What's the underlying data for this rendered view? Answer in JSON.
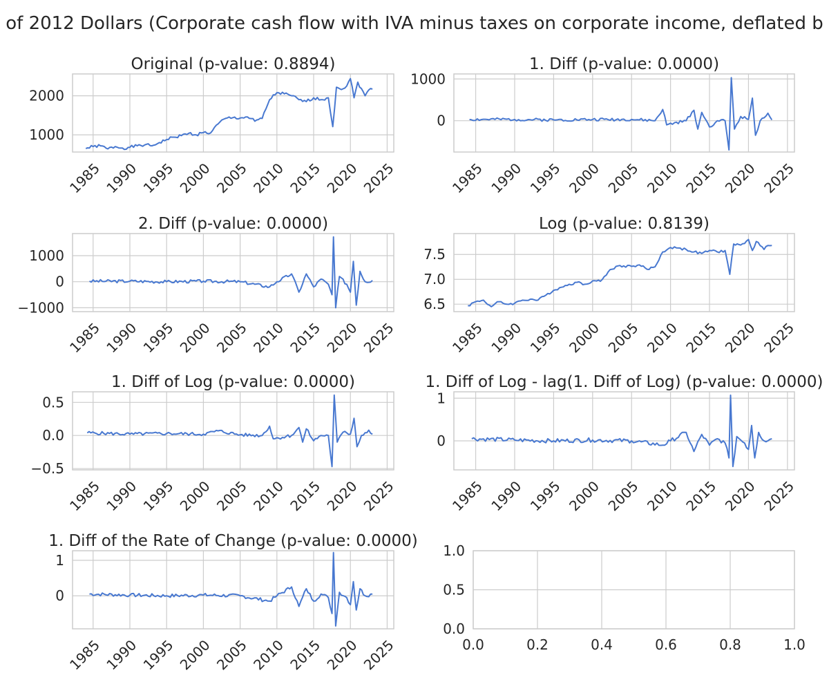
{
  "figure": {
    "suptitle": "of 2012 Dollars (Corporate cash flow with IVA minus taxes on corporate income, deflated b"
  },
  "colors": {
    "line": "#4878d0",
    "grid": "#cccccc",
    "text": "#262626"
  },
  "chart_data": [
    {
      "type": "line",
      "title": "Original (p-value: 0.8894)",
      "xlim": [
        1982.2,
        2025.9
      ],
      "ylim": [
        560,
        2560
      ],
      "xticks": [
        1985,
        1990,
        1995,
        2000,
        2005,
        2010,
        2015,
        2020,
        2025
      ],
      "xtick_labels": [
        "1985",
        "1990",
        "1995",
        "2000",
        "2005",
        "2010",
        "2015",
        "2020",
        "2025"
      ],
      "yticks": [
        1000,
        2000
      ],
      "ytick_labels": [
        "1000",
        "2000"
      ],
      "anchors": [
        [
          1984.0,
          650
        ],
        [
          1985.0,
          700
        ],
        [
          1986.0,
          720
        ],
        [
          1987.0,
          640
        ],
        [
          1988.0,
          700
        ],
        [
          1989.0,
          660
        ],
        [
          1990.0,
          680
        ],
        [
          1991.0,
          720
        ],
        [
          1992.0,
          740
        ],
        [
          1993.0,
          720
        ],
        [
          1994.0,
          800
        ],
        [
          1995.0,
          880
        ],
        [
          1996.0,
          940
        ],
        [
          1997.0,
          980
        ],
        [
          1998.0,
          1040
        ],
        [
          1999.0,
          1000
        ],
        [
          2000.0,
          1060
        ],
        [
          2001.0,
          1050
        ],
        [
          2002.0,
          1280
        ],
        [
          2003.0,
          1420
        ],
        [
          2004.0,
          1440
        ],
        [
          2005.0,
          1430
        ],
        [
          2006.0,
          1460
        ],
        [
          2007.0,
          1350
        ],
        [
          2008.0,
          1420
        ],
        [
          2009.0,
          1900
        ],
        [
          2010.0,
          2080
        ],
        [
          2011.0,
          2050
        ],
        [
          2012.0,
          2000
        ],
        [
          2013.0,
          1900
        ],
        [
          2014.0,
          1850
        ],
        [
          2015.0,
          1950
        ],
        [
          2016.0,
          1900
        ],
        [
          2017.0,
          1950
        ],
        [
          2017.6,
          1210
        ],
        [
          2018.1,
          2220
        ],
        [
          2019.0,
          2180
        ],
        [
          2019.5,
          2250
        ],
        [
          2020.0,
          2440
        ],
        [
          2020.5,
          1950
        ],
        [
          2021.0,
          2350
        ],
        [
          2022.0,
          2000
        ],
        [
          2022.5,
          2150
        ],
        [
          2023.0,
          2170
        ]
      ],
      "noise": 40,
      "seed": 1
    },
    {
      "type": "line",
      "title": "1. Diff (p-value: 0.0000)",
      "xlim": [
        1982.2,
        2025.9
      ],
      "ylim": [
        -750,
        1120
      ],
      "xticks": [
        1985,
        1990,
        1995,
        2000,
        2005,
        2010,
        2015,
        2020,
        2025
      ],
      "xtick_labels": [
        "1985",
        "1990",
        "1995",
        "2000",
        "2005",
        "2010",
        "2015",
        "2020",
        "2025"
      ],
      "yticks": [
        0,
        1000
      ],
      "ytick_labels": [
        "0",
        "1000"
      ],
      "anchors": [
        [
          1984.2,
          30
        ],
        [
          1990.0,
          30
        ],
        [
          1995.0,
          20
        ],
        [
          2000.0,
          30
        ],
        [
          2005.0,
          30
        ],
        [
          2008.0,
          0
        ],
        [
          2009.0,
          270
        ],
        [
          2009.5,
          -100
        ],
        [
          2012.0,
          0
        ],
        [
          2013.0,
          250
        ],
        [
          2013.5,
          -200
        ],
        [
          2014.0,
          200
        ],
        [
          2015.0,
          -150
        ],
        [
          2016.0,
          0
        ],
        [
          2017.0,
          0
        ],
        [
          2017.5,
          -700
        ],
        [
          2017.8,
          1030
        ],
        [
          2018.2,
          -200
        ],
        [
          2019.0,
          100
        ],
        [
          2020.0,
          30
        ],
        [
          2020.5,
          540
        ],
        [
          2020.9,
          -350
        ],
        [
          2021.5,
          0
        ],
        [
          2022.5,
          180
        ],
        [
          2023.0,
          20
        ]
      ],
      "noise": 35,
      "seed": 2
    },
    {
      "type": "line",
      "title": "2. Diff (p-value: 0.0000)",
      "xlim": [
        1982.2,
        2025.9
      ],
      "ylim": [
        -1150,
        1850
      ],
      "xticks": [
        1985,
        1990,
        1995,
        2000,
        2005,
        2010,
        2015,
        2020,
        2025
      ],
      "xtick_labels": [
        "1985",
        "1990",
        "1995",
        "2000",
        "2005",
        "2010",
        "2015",
        "2020",
        "2025"
      ],
      "yticks": [
        -1000,
        0,
        1000
      ],
      "ytick_labels": [
        "−1000",
        "0",
        "1000"
      ],
      "anchors": [
        [
          1984.5,
          20
        ],
        [
          1990.0,
          20
        ],
        [
          1995.0,
          0
        ],
        [
          2000.0,
          20
        ],
        [
          2005.0,
          0
        ],
        [
          2009.0,
          -200
        ],
        [
          2010.0,
          0
        ],
        [
          2012.0,
          300
        ],
        [
          2013.0,
          -400
        ],
        [
          2014.0,
          300
        ],
        [
          2015.0,
          -200
        ],
        [
          2016.0,
          100
        ],
        [
          2017.0,
          -100
        ],
        [
          2017.5,
          -500
        ],
        [
          2017.7,
          1720
        ],
        [
          2018.0,
          -1000
        ],
        [
          2018.5,
          200
        ],
        [
          2019.5,
          -100
        ],
        [
          2020.0,
          -400
        ],
        [
          2020.4,
          780
        ],
        [
          2020.8,
          -900
        ],
        [
          2021.3,
          400
        ],
        [
          2022.0,
          0
        ],
        [
          2023.0,
          50
        ]
      ],
      "noise": 60,
      "seed": 3
    },
    {
      "type": "line",
      "title": "Log (p-value: 0.8139)",
      "xlim": [
        1982.2,
        2025.9
      ],
      "ylim": [
        6.35,
        7.92
      ],
      "xticks": [
        1985,
        1990,
        1995,
        2000,
        2005,
        2010,
        2015,
        2020,
        2025
      ],
      "xtick_labels": [
        "1985",
        "1990",
        "1995",
        "2000",
        "2005",
        "2010",
        "2015",
        "2020",
        "2025"
      ],
      "yticks": [
        6.5,
        7.0,
        7.5
      ],
      "ytick_labels": [
        "6.5",
        "7.0",
        "7.5"
      ],
      "anchors": [
        [
          1984.0,
          6.47
        ],
        [
          1985.0,
          6.55
        ],
        [
          1986.0,
          6.58
        ],
        [
          1987.0,
          6.45
        ],
        [
          1988.0,
          6.55
        ],
        [
          1989.0,
          6.5
        ],
        [
          1990.0,
          6.52
        ],
        [
          1991.0,
          6.58
        ],
        [
          1992.0,
          6.6
        ],
        [
          1993.0,
          6.58
        ],
        [
          1994.0,
          6.68
        ],
        [
          1995.0,
          6.78
        ],
        [
          1996.0,
          6.84
        ],
        [
          1997.0,
          6.9
        ],
        [
          1998.0,
          6.94
        ],
        [
          1999.0,
          6.9
        ],
        [
          2000.0,
          6.97
        ],
        [
          2001.0,
          6.96
        ],
        [
          2002.0,
          7.15
        ],
        [
          2003.0,
          7.26
        ],
        [
          2004.0,
          7.27
        ],
        [
          2005.0,
          7.26
        ],
        [
          2006.0,
          7.29
        ],
        [
          2007.0,
          7.2
        ],
        [
          2008.0,
          7.25
        ],
        [
          2009.0,
          7.55
        ],
        [
          2010.0,
          7.64
        ],
        [
          2011.0,
          7.63
        ],
        [
          2012.0,
          7.6
        ],
        [
          2013.0,
          7.55
        ],
        [
          2014.0,
          7.52
        ],
        [
          2015.0,
          7.58
        ],
        [
          2016.0,
          7.55
        ],
        [
          2017.0,
          7.58
        ],
        [
          2017.6,
          7.1
        ],
        [
          2018.1,
          7.71
        ],
        [
          2019.0,
          7.69
        ],
        [
          2019.5,
          7.72
        ],
        [
          2020.0,
          7.8
        ],
        [
          2020.5,
          7.58
        ],
        [
          2021.0,
          7.76
        ],
        [
          2022.0,
          7.6
        ],
        [
          2022.5,
          7.68
        ],
        [
          2023.0,
          7.68
        ]
      ],
      "noise": 0.025,
      "seed": 4
    },
    {
      "type": "line",
      "title": "1. Diff of Log (p-value: 0.0000)",
      "xlim": [
        1982.2,
        2025.9
      ],
      "ylim": [
        -0.52,
        0.66
      ],
      "xticks": [
        1985,
        1990,
        1995,
        2000,
        2005,
        2010,
        2015,
        2020,
        2025
      ],
      "xtick_labels": [
        "1985",
        "1990",
        "1995",
        "2000",
        "2005",
        "2010",
        "2015",
        "2020",
        "2025"
      ],
      "yticks": [
        -0.5,
        0.0,
        0.5
      ],
      "ytick_labels": [
        "−0.5",
        "0.0",
        "0.5"
      ],
      "anchors": [
        [
          1984.2,
          0.04
        ],
        [
          1990.0,
          0.02
        ],
        [
          1995.0,
          0.03
        ],
        [
          2000.0,
          0.02
        ],
        [
          2002.0,
          0.07
        ],
        [
          2005.0,
          0.01
        ],
        [
          2008.0,
          0.0
        ],
        [
          2009.0,
          0.14
        ],
        [
          2009.5,
          -0.05
        ],
        [
          2012.0,
          0.0
        ],
        [
          2013.0,
          0.12
        ],
        [
          2013.5,
          -0.1
        ],
        [
          2014.0,
          0.1
        ],
        [
          2015.0,
          -0.08
        ],
        [
          2016.0,
          0.0
        ],
        [
          2017.0,
          0.0
        ],
        [
          2017.5,
          -0.47
        ],
        [
          2017.8,
          0.61
        ],
        [
          2018.2,
          -0.1
        ],
        [
          2019.0,
          0.05
        ],
        [
          2020.0,
          0.02
        ],
        [
          2020.5,
          0.26
        ],
        [
          2020.9,
          -0.17
        ],
        [
          2021.5,
          0.0
        ],
        [
          2022.5,
          0.08
        ],
        [
          2023.0,
          0.02
        ]
      ],
      "noise": 0.025,
      "seed": 5
    },
    {
      "type": "line",
      "title": "1. Diff of Log - lag(1. Diff of Log) (p-value: 0.0000)",
      "xlim": [
        1982.2,
        2025.9
      ],
      "ylim": [
        -0.68,
        1.15
      ],
      "xticks": [
        1985,
        1990,
        1995,
        2000,
        2005,
        2010,
        2015,
        2020,
        2025
      ],
      "xtick_labels": [
        "1985",
        "1990",
        "1995",
        "2000",
        "2005",
        "2010",
        "2015",
        "2020",
        "2025"
      ],
      "yticks": [
        0,
        1
      ],
      "ytick_labels": [
        "0",
        "1"
      ],
      "anchors": [
        [
          1984.5,
          0.05
        ],
        [
          1990.0,
          0.02
        ],
        [
          1995.0,
          0.0
        ],
        [
          2000.0,
          0.02
        ],
        [
          2005.0,
          0.0
        ],
        [
          2009.0,
          -0.1
        ],
        [
          2010.0,
          0.0
        ],
        [
          2012.0,
          0.2
        ],
        [
          2013.0,
          -0.25
        ],
        [
          2014.0,
          0.15
        ],
        [
          2015.0,
          -0.1
        ],
        [
          2016.0,
          0.05
        ],
        [
          2017.0,
          -0.05
        ],
        [
          2017.5,
          -0.4
        ],
        [
          2017.7,
          1.07
        ],
        [
          2018.0,
          -0.6
        ],
        [
          2018.5,
          0.1
        ],
        [
          2019.5,
          -0.05
        ],
        [
          2020.0,
          -0.2
        ],
        [
          2020.4,
          0.36
        ],
        [
          2020.8,
          -0.4
        ],
        [
          2021.3,
          0.2
        ],
        [
          2022.0,
          0.0
        ],
        [
          2023.0,
          0.05
        ]
      ],
      "noise": 0.05,
      "seed": 6
    },
    {
      "type": "line",
      "title": "1. Diff of the Rate of Change (p-value: 0.0000)",
      "xlim": [
        1982.2,
        2025.9
      ],
      "ylim": [
        -0.93,
        1.27
      ],
      "xticks": [
        1985,
        1990,
        1995,
        2000,
        2005,
        2010,
        2015,
        2020,
        2025
      ],
      "xtick_labels": [
        "1985",
        "1990",
        "1995",
        "2000",
        "2005",
        "2010",
        "2015",
        "2020",
        "2025"
      ],
      "yticks": [
        0,
        1
      ],
      "ytick_labels": [
        "0",
        "1"
      ],
      "anchors": [
        [
          1984.5,
          0.05
        ],
        [
          1990.0,
          0.02
        ],
        [
          1995.0,
          0.0
        ],
        [
          2000.0,
          0.02
        ],
        [
          2005.0,
          0.0
        ],
        [
          2009.0,
          -0.15
        ],
        [
          2010.0,
          0.0
        ],
        [
          2012.0,
          0.25
        ],
        [
          2013.0,
          -0.3
        ],
        [
          2014.0,
          0.2
        ],
        [
          2015.0,
          -0.15
        ],
        [
          2016.0,
          0.05
        ],
        [
          2017.0,
          -0.05
        ],
        [
          2017.5,
          -0.5
        ],
        [
          2017.7,
          1.22
        ],
        [
          2018.0,
          -0.85
        ],
        [
          2018.5,
          0.1
        ],
        [
          2019.5,
          -0.05
        ],
        [
          2020.0,
          -0.25
        ],
        [
          2020.4,
          0.4
        ],
        [
          2020.8,
          -0.4
        ],
        [
          2021.3,
          0.2
        ],
        [
          2022.0,
          0.0
        ],
        [
          2023.0,
          0.05
        ]
      ],
      "noise": 0.05,
      "seed": 7
    },
    {
      "type": "line",
      "title": "",
      "xlim": [
        0.0,
        1.0
      ],
      "ylim": [
        0.0,
        1.0
      ],
      "xticks": [
        0.0,
        0.2,
        0.4,
        0.6,
        0.8,
        1.0
      ],
      "xtick_labels": [
        "0.0",
        "0.2",
        "0.4",
        "0.6",
        "0.8",
        "1.0"
      ],
      "yticks": [
        0.0,
        0.5,
        1.0
      ],
      "ytick_labels": [
        "0.0",
        "0.5",
        "1.0"
      ],
      "anchors": [],
      "noise": 0,
      "seed": 8
    }
  ]
}
